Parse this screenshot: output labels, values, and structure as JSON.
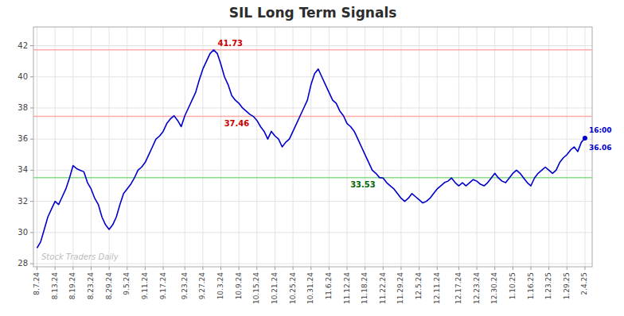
{
  "chart_data": {
    "type": "line",
    "title": "SIL Long Term Signals",
    "color": "#0000cc",
    "grid": true,
    "ylim": [
      27.8,
      43.2
    ],
    "yticks": [
      28,
      30,
      32,
      34,
      36,
      38,
      40,
      42
    ],
    "categories": [
      "8.7.24",
      null,
      null,
      null,
      null,
      "8.13.24",
      null,
      null,
      null,
      null,
      "8.19.24",
      null,
      null,
      null,
      null,
      "8.23.24",
      null,
      null,
      null,
      null,
      "8.29.24",
      null,
      null,
      null,
      null,
      "9.5.24",
      null,
      null,
      null,
      null,
      "9.11.24",
      null,
      null,
      null,
      null,
      "9.17.24",
      null,
      null,
      null,
      null,
      null,
      "9.23.24",
      null,
      null,
      null,
      null,
      "9.27.24",
      null,
      null,
      null,
      null,
      "10.3.24",
      null,
      null,
      null,
      null,
      "10.9.24",
      null,
      null,
      null,
      null,
      "10.15.24",
      null,
      null,
      null,
      null,
      "10.21.24",
      null,
      null,
      null,
      null,
      "10.25.24",
      null,
      null,
      null,
      null,
      "10.31.24",
      null,
      null,
      null,
      null,
      "11.6.24",
      null,
      null,
      null,
      null,
      "11.12.24",
      null,
      null,
      null,
      null,
      "11.18.24",
      null,
      null,
      null,
      null,
      "11.22.24",
      null,
      null,
      null,
      null,
      "11.29.24",
      null,
      null,
      null,
      null,
      "12.5.24",
      null,
      null,
      null,
      null,
      "12.11.24",
      null,
      null,
      null,
      null,
      null,
      "12.17.24",
      null,
      null,
      null,
      null,
      "12.23.24",
      null,
      null,
      null,
      null,
      "12.30.24",
      null,
      null,
      null,
      null,
      "1.10.25",
      null,
      null,
      null,
      null,
      "1.16.25",
      null,
      null,
      null,
      null,
      "1.23.25",
      null,
      null,
      null,
      null,
      "1.29.25",
      null,
      null,
      null,
      null,
      "2.4.25"
    ],
    "values": [
      29.0,
      29.4,
      30.2,
      31.0,
      31.5,
      32.0,
      31.8,
      32.3,
      32.8,
      33.5,
      34.3,
      34.1,
      34.0,
      33.9,
      33.2,
      32.8,
      32.2,
      31.8,
      31.0,
      30.5,
      30.2,
      30.5,
      31.0,
      31.8,
      32.5,
      32.8,
      33.1,
      33.5,
      34.0,
      34.2,
      34.5,
      35.0,
      35.5,
      36.0,
      36.2,
      36.5,
      37.0,
      37.3,
      37.5,
      37.2,
      36.8,
      37.5,
      38.0,
      38.5,
      39.0,
      39.8,
      40.5,
      41.0,
      41.5,
      41.73,
      41.5,
      40.8,
      40.0,
      39.5,
      38.8,
      38.5,
      38.3,
      38.0,
      37.8,
      37.6,
      37.46,
      37.2,
      36.8,
      36.5,
      36.0,
      36.5,
      36.2,
      36.0,
      35.5,
      35.8,
      36.0,
      36.5,
      37.0,
      37.5,
      38.0,
      38.5,
      39.5,
      40.2,
      40.5,
      40.0,
      39.5,
      39.0,
      38.5,
      38.3,
      37.8,
      37.5,
      37.0,
      36.8,
      36.5,
      36.0,
      35.5,
      35.0,
      34.5,
      34.0,
      33.8,
      33.53,
      33.5,
      33.2,
      33.0,
      32.8,
      32.5,
      32.2,
      32.0,
      32.2,
      32.5,
      32.3,
      32.1,
      31.9,
      32.0,
      32.2,
      32.5,
      32.8,
      33.0,
      33.2,
      33.3,
      33.5,
      33.2,
      33.0,
      33.2,
      33.0,
      33.2,
      33.4,
      33.3,
      33.1,
      33.0,
      33.2,
      33.5,
      33.8,
      33.5,
      33.3,
      33.2,
      33.5,
      33.8,
      34.0,
      33.8,
      33.5,
      33.2,
      33.0,
      33.5,
      33.8,
      34.0,
      34.2,
      34.0,
      33.8,
      34.0,
      34.5,
      34.8,
      35.0,
      35.3,
      35.5,
      35.2,
      35.8,
      36.06
    ],
    "reference_lines": [
      {
        "value": 41.73,
        "color": "#ffaaaa",
        "label": "41.73",
        "label_color": "#cc0000"
      },
      {
        "value": 37.46,
        "color": "#ffaaaa",
        "label": "37.46",
        "label_color": "#cc0000"
      },
      {
        "value": 33.53,
        "color": "#88dd88",
        "label": "33.53",
        "label_color": "#006600"
      }
    ],
    "annotations": [
      {
        "text": "16:00",
        "color": "#0000cc"
      },
      {
        "text": "36.06",
        "color": "#0000cc"
      }
    ],
    "watermark": {
      "text": "Stock Traders Daily",
      "color": "#bbbbbb"
    }
  }
}
